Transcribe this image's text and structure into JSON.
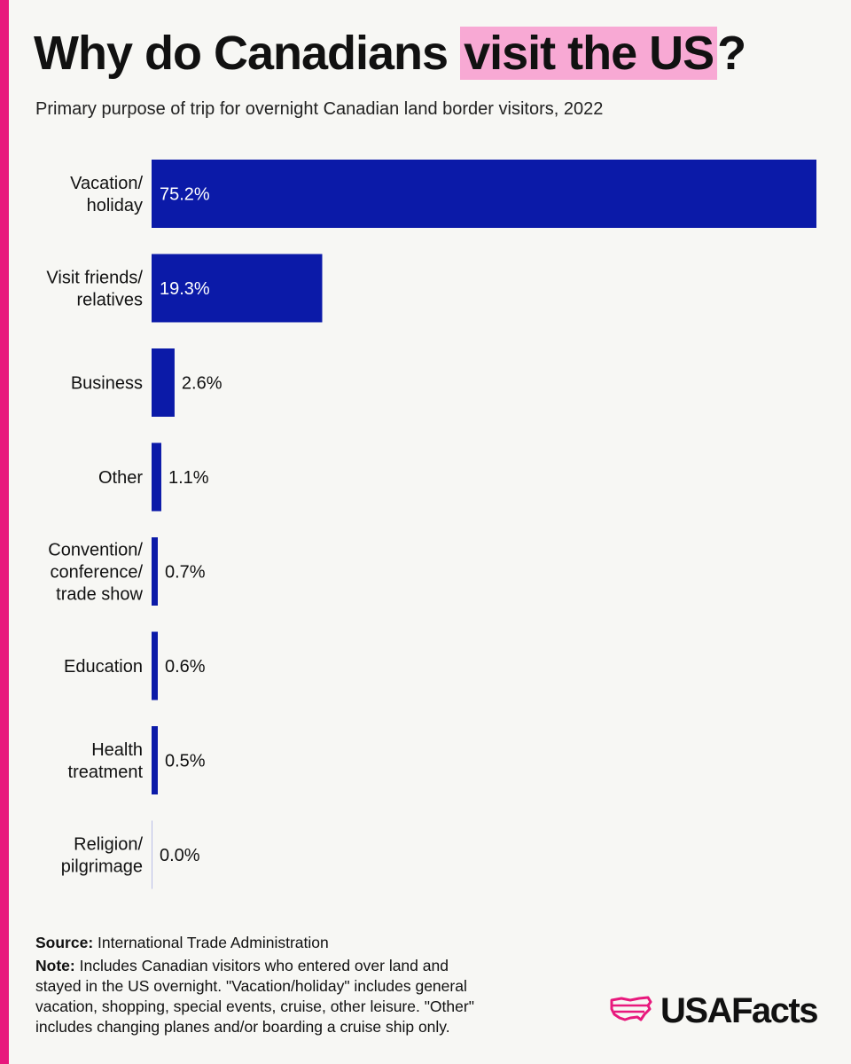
{
  "title": {
    "before": "Why do Canadians ",
    "highlight": "visit the US",
    "after": "?"
  },
  "subtitle": "Primary purpose of trip for overnight Canadian land border visitors, 2022",
  "colors": {
    "accent": "#e8197d",
    "highlight": "#f8a9d4",
    "bar": "#0b1aa8",
    "background": "#f7f7f4"
  },
  "chart_data": {
    "type": "bar",
    "orientation": "horizontal",
    "categories": [
      "Vacation/\nholiday",
      "Visit friends/\nrelatives",
      "Business",
      "Other",
      "Convention/\nconference/\ntrade show",
      "Education",
      "Health\ntreatment",
      "Religion/\npilgrimage"
    ],
    "values": [
      75.2,
      19.3,
      2.6,
      1.1,
      0.7,
      0.6,
      0.5,
      0.0
    ],
    "value_labels": [
      "75.2%",
      "19.3%",
      "2.6%",
      "1.1%",
      "0.7%",
      "0.6%",
      "0.5%",
      "0.0%"
    ],
    "xlim": [
      0,
      75.2
    ],
    "grid": false,
    "legend": "none"
  },
  "footer": {
    "source_label": "Source:",
    "source_text": "International Trade Administration",
    "note_label": "Note:",
    "note_text": "Includes Canadian visitors who entered over land and stayed in the US overnight. \"Vacation/holiday\" includes general vacation, shopping, special events, cruise, other leisure. \"Other\" includes changing planes and/or boarding a cruise ship only."
  },
  "logo": {
    "text": "USAFacts",
    "icon": "usa-map-icon"
  }
}
